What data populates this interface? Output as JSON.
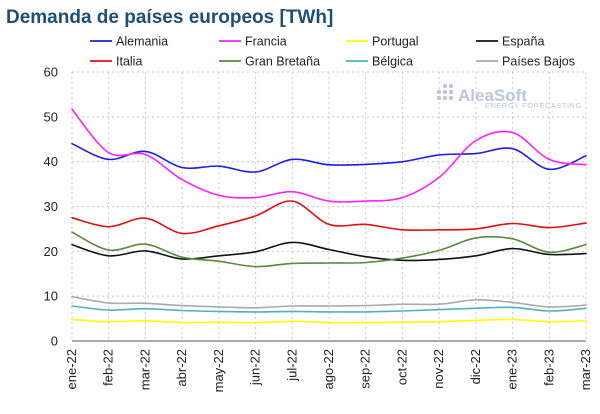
{
  "chart_data": {
    "type": "line",
    "title": "Demanda de países europeos [TWh]",
    "xlabel": "",
    "ylabel": "",
    "ylim": [
      0,
      60
    ],
    "yticks": [
      0,
      10,
      20,
      30,
      40,
      50,
      60
    ],
    "grid": true,
    "legend_position": "top",
    "categories": [
      "ene-22",
      "feb-22",
      "mar-22",
      "abr-22",
      "may-22",
      "jun-22",
      "jul-22",
      "ago-22",
      "sep-22",
      "oct-22",
      "nov-22",
      "dic-22",
      "ene-23",
      "feb-23",
      "mar-23"
    ],
    "series": [
      {
        "name": "Alemania",
        "color": "#1f1fe0",
        "values": [
          44.0,
          40.5,
          42.3,
          38.7,
          39.0,
          37.7,
          40.5,
          39.3,
          39.4,
          40.0,
          41.5,
          41.8,
          42.9,
          38.3,
          41.3
        ]
      },
      {
        "name": "Francia",
        "color": "#ff22ff",
        "values": [
          51.7,
          42.0,
          41.6,
          36.0,
          32.5,
          32.0,
          33.3,
          31.2,
          31.2,
          32.0,
          36.5,
          44.7,
          46.5,
          40.5,
          39.3
        ]
      },
      {
        "name": "Portugal",
        "color": "#ffff00",
        "values": [
          4.8,
          4.3,
          4.5,
          4.1,
          4.2,
          4.1,
          4.4,
          4.1,
          4.1,
          4.2,
          4.3,
          4.6,
          4.8,
          4.3,
          4.5
        ]
      },
      {
        "name": "España",
        "color": "#111111",
        "values": [
          21.5,
          19.0,
          20.1,
          18.3,
          19.0,
          19.9,
          22.0,
          20.4,
          18.8,
          18.0,
          18.2,
          19.0,
          20.6,
          19.3,
          19.5
        ]
      },
      {
        "name": "Italia",
        "color": "#e01010",
        "values": [
          27.5,
          25.5,
          27.4,
          24.0,
          25.7,
          27.9,
          31.2,
          26.0,
          26.0,
          24.8,
          24.8,
          25.0,
          26.2,
          25.3,
          26.3
        ]
      },
      {
        "name": "Gran Bretaña",
        "color": "#5a8a3a",
        "values": [
          24.3,
          20.3,
          21.6,
          18.7,
          17.8,
          16.6,
          17.3,
          17.4,
          17.5,
          18.5,
          20.2,
          23.0,
          22.8,
          19.8,
          21.5
        ]
      },
      {
        "name": "Bélgica",
        "color": "#4fb0c0",
        "values": [
          7.8,
          6.9,
          7.2,
          6.8,
          6.6,
          6.5,
          6.6,
          6.5,
          6.5,
          6.7,
          7.0,
          7.3,
          7.5,
          6.7,
          7.3
        ]
      },
      {
        "name": "Países Bajos",
        "color": "#aaaaaa",
        "values": [
          9.9,
          8.5,
          8.4,
          7.9,
          7.6,
          7.4,
          7.8,
          7.8,
          7.9,
          8.2,
          8.2,
          9.2,
          8.6,
          7.6,
          8.0
        ]
      }
    ]
  },
  "brand": {
    "name": "AleaSoft",
    "tagline": "ENERGY FORECASTING",
    "icon": "dots-logo-icon"
  }
}
